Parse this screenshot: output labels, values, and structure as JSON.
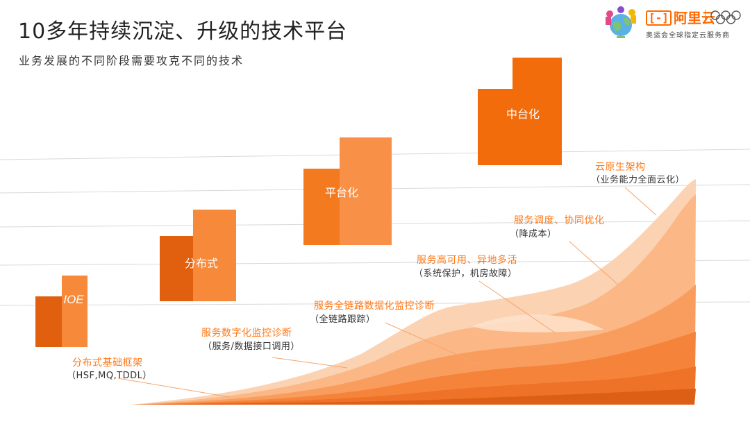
{
  "header": {
    "title": "10多年持续沉淀、升级的技术平台",
    "subtitle": "业务发展的不同阶段需要攻克不同的技术"
  },
  "logo": {
    "mascot_icon": "olympic-mascot-globe-icon",
    "brand_symbol": "[-]",
    "brand_name": "阿里云",
    "rings_icon": "olympic-rings-icon",
    "slogan": "奥运会全球指定云服务商"
  },
  "stages": [
    {
      "label": "IOE"
    },
    {
      "label": "分布式"
    },
    {
      "label": "平台化"
    },
    {
      "label": "中台化"
    }
  ],
  "annotations": [
    {
      "title": "分布式基础框架",
      "sub": "（HSF,MQ,TDDL）"
    },
    {
      "title": "服务数字化监控诊断",
      "sub": "（服务/数据接口调用）"
    },
    {
      "title": "服务全链路数据化监控诊断",
      "sub": "（全链路跟踪）"
    },
    {
      "title": "服务高可用、异地多活",
      "sub": "（系统保护，机房故障）"
    },
    {
      "title": "服务调度、协同优化",
      "sub": "（降成本）"
    },
    {
      "title": "云原生架构",
      "sub": "（业务能力全面云化）"
    }
  ],
  "colors": {
    "accent": "#ff6a00",
    "block_dark": "#e0600f",
    "block_light": "#f7893a",
    "text_orange": "#ff7a1a"
  }
}
